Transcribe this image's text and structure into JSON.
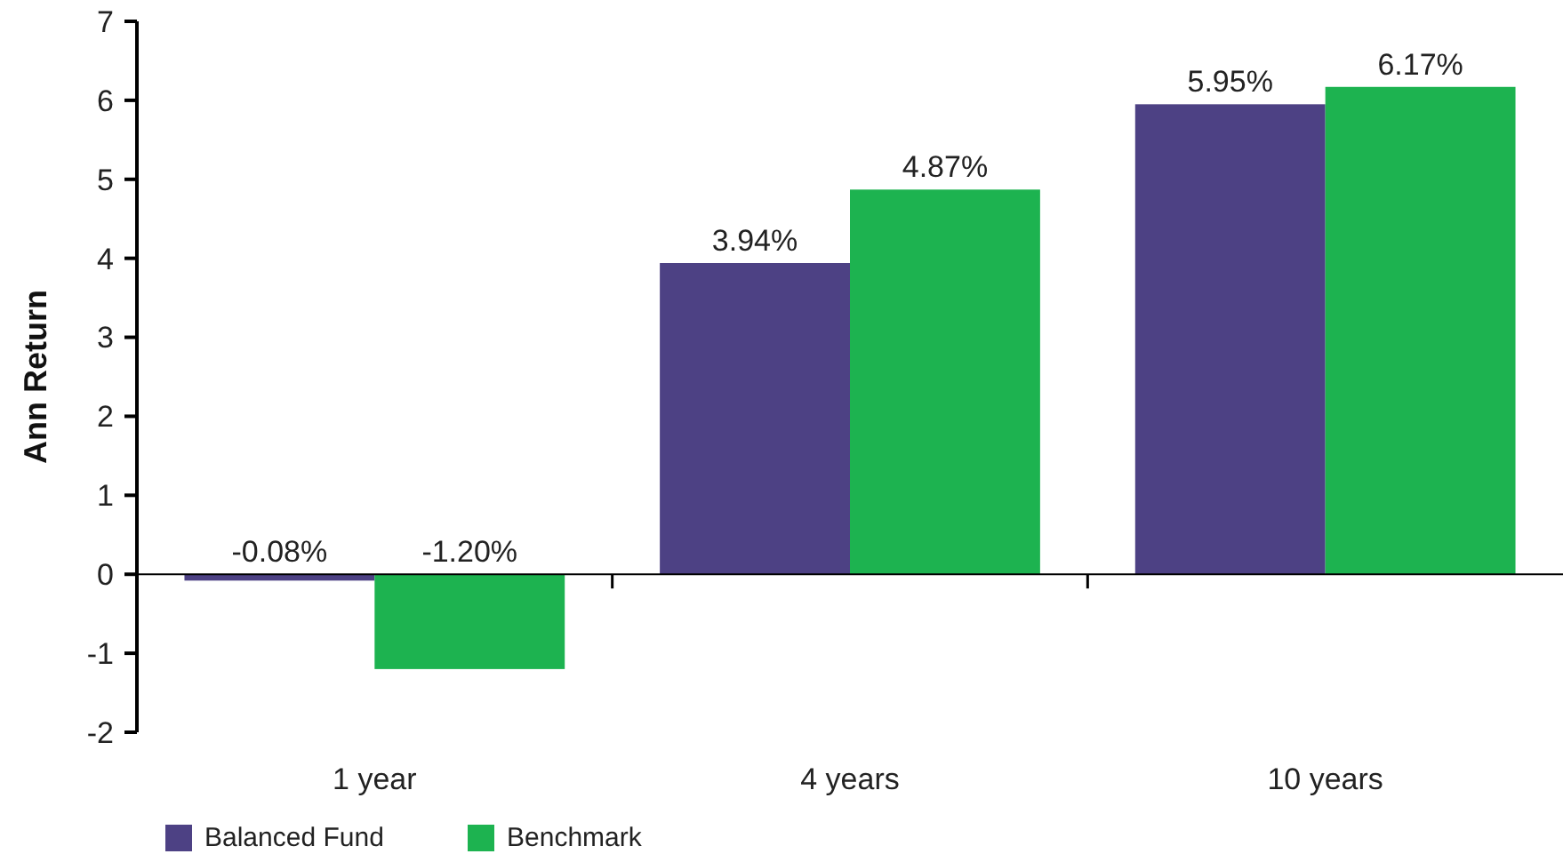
{
  "chart_data": {
    "type": "bar",
    "ylabel": "Ann Return",
    "categories": [
      "1 year",
      "4 years",
      "10 years"
    ],
    "series": [
      {
        "name": "Balanced Fund",
        "color": "#4d4184",
        "values": [
          -0.08,
          3.94,
          5.95
        ],
        "value_labels": [
          "-0.08%",
          "3.94%",
          "5.95%"
        ]
      },
      {
        "name": "Benchmark",
        "color": "#1db350",
        "values": [
          -1.2,
          4.87,
          6.17
        ],
        "value_labels": [
          "-1.20%",
          "4.87%",
          "6.17%"
        ]
      }
    ],
    "ylim": [
      -2,
      7
    ],
    "yticks": [
      -2,
      -1,
      0,
      1,
      2,
      3,
      4,
      5,
      6,
      7
    ],
    "legend": "bottom left"
  }
}
